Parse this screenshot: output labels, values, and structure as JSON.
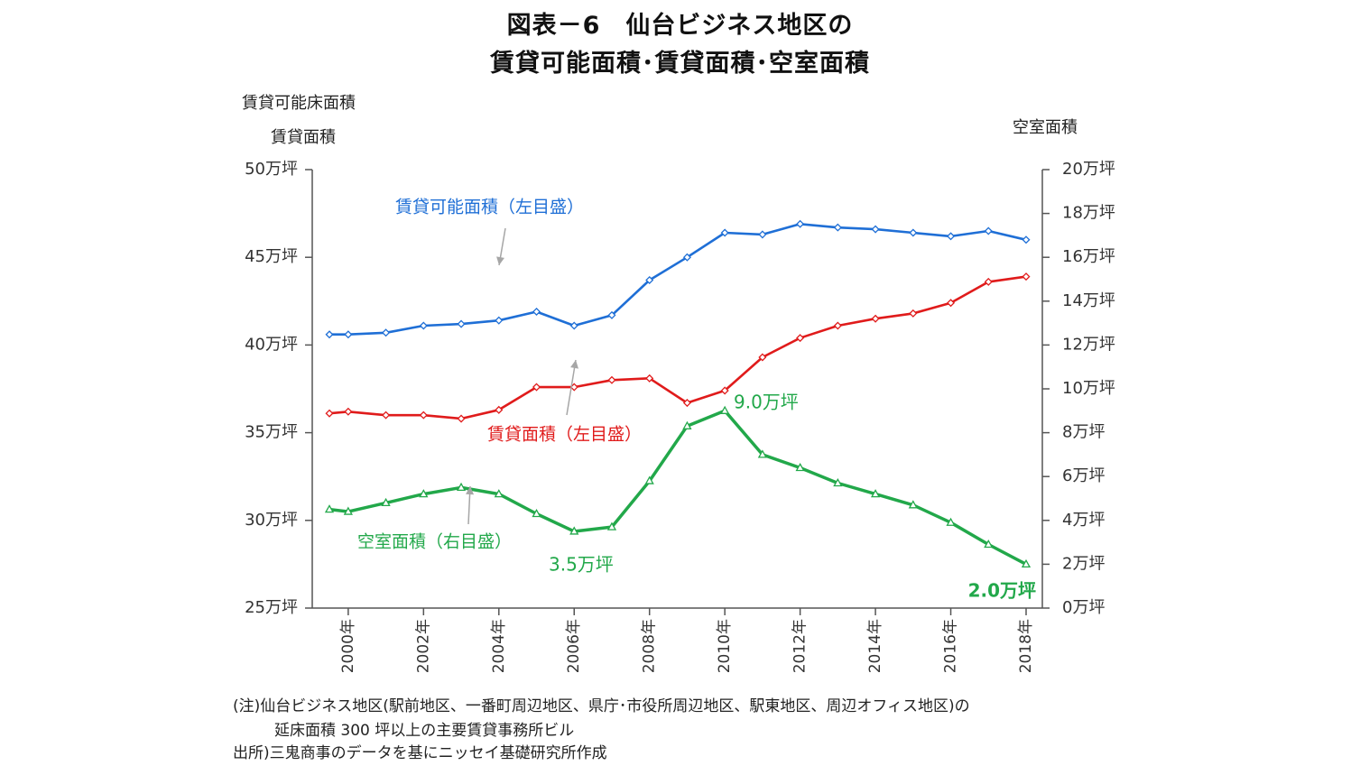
{
  "title": {
    "line1": "図表－6　仙台ビジネス地区の",
    "line2": "賃貸可能面積･賃貸面積･空室面積"
  },
  "axis_titles": {
    "left_line1": "賃貸可能床面積",
    "left_line2": "賃貸面積",
    "right": "空室面積"
  },
  "notes": {
    "note1": "(注)仙台ビジネス地区(駅前地区、一番町周辺地区、県庁･市役所周辺地区、駅東地区、周辺オフィス地区)の",
    "note2": "延床面積 300 坪以上の主要賃貸事務所ビル",
    "note3": "出所)三鬼商事のデータを基にニッセイ基礎研究所作成"
  },
  "colors": {
    "blue": "#1F6FD6",
    "red": "#E01B1B",
    "green": "#22A84A",
    "axis": "#555555",
    "arrow": "#A6A6A6"
  },
  "chart_data": {
    "type": "line",
    "title": "図表－6　仙台ビジネス地区の賃貸可能面積･賃貸面積･空室面積",
    "x_tick_labels": [
      "2000年",
      "2002年",
      "2004年",
      "2006年",
      "2008年",
      "2010年",
      "2012年",
      "2014年",
      "2016年",
      "2018年"
    ],
    "x_tick_years": [
      2000,
      2002,
      2004,
      2006,
      2008,
      2010,
      2012,
      2014,
      2016,
      2018
    ],
    "x": [
      1999.5,
      2000,
      2001,
      2002,
      2003,
      2004,
      2005,
      2006,
      2007,
      2008,
      2009,
      2010,
      2011,
      2012,
      2013,
      2014,
      2015,
      2016,
      2017,
      2018
    ],
    "y_left": {
      "label": "賃貸可能床面積 / 賃貸面積",
      "range": [
        25,
        50
      ],
      "ticks": [
        25,
        30,
        35,
        40,
        45,
        50
      ],
      "tick_labels": [
        "25万坪",
        "30万坪",
        "35万坪",
        "40万坪",
        "45万坪",
        "50万坪"
      ]
    },
    "y_right": {
      "label": "空室面積",
      "range": [
        0,
        20
      ],
      "ticks": [
        0,
        2,
        4,
        6,
        8,
        10,
        12,
        14,
        16,
        18,
        20
      ],
      "tick_labels": [
        "0万坪",
        "2万坪",
        "4万坪",
        "6万坪",
        "8万坪",
        "10万坪",
        "12万坪",
        "14万坪",
        "16万坪",
        "18万坪",
        "20万坪"
      ]
    },
    "series": [
      {
        "name": "賃貸可能面積（左目盛）",
        "axis": "left",
        "color": "#1F6FD6",
        "marker": "diamond",
        "values": [
          40.6,
          40.6,
          40.7,
          41.1,
          41.2,
          41.4,
          41.9,
          41.1,
          41.7,
          43.7,
          45.0,
          46.4,
          46.3,
          46.9,
          46.7,
          46.6,
          46.4,
          46.2,
          46.5,
          46.0
        ]
      },
      {
        "name": "賃貸面積（左目盛）",
        "axis": "left",
        "color": "#E01B1B",
        "marker": "diamond",
        "values": [
          36.1,
          36.2,
          36.0,
          36.0,
          35.8,
          36.3,
          37.6,
          37.6,
          38.0,
          38.1,
          36.7,
          37.4,
          39.3,
          40.4,
          41.1,
          41.5,
          41.8,
          42.4,
          43.6,
          43.9
        ]
      },
      {
        "name": "空室面積（右目盛）",
        "axis": "right",
        "color": "#22A84A",
        "marker": "triangle",
        "values": [
          4.5,
          4.4,
          4.8,
          5.2,
          5.5,
          5.2,
          4.3,
          3.5,
          3.7,
          5.8,
          8.3,
          9.0,
          7.0,
          6.4,
          5.7,
          5.2,
          4.7,
          3.9,
          2.9,
          2.0
        ]
      }
    ],
    "annotations": {
      "peak": "9.0万坪",
      "trough": "3.5万坪",
      "latest": "2.0万坪"
    }
  }
}
